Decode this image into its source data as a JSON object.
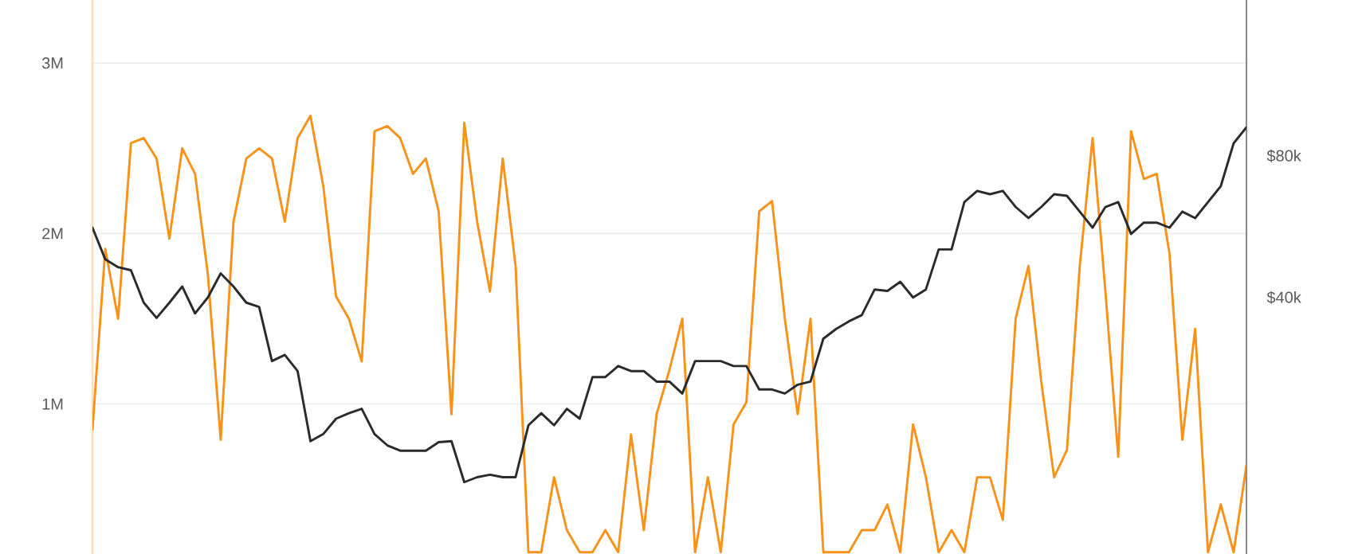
{
  "chart_data": {
    "type": "line",
    "categories": [
      null,
      null,
      null,
      null,
      null,
      null,
      null,
      null,
      null,
      null,
      null,
      null,
      null,
      null,
      null,
      null,
      null,
      null,
      null,
      null,
      null,
      null,
      null,
      null,
      null,
      null,
      null,
      null,
      null,
      null,
      null,
      null,
      null,
      null,
      null,
      null,
      null,
      null,
      null,
      null,
      null,
      null,
      null,
      null,
      null,
      null,
      null,
      null,
      null,
      null,
      null,
      null,
      null,
      null,
      null,
      null,
      null,
      null,
      null,
      null,
      null,
      null,
      null,
      null,
      null,
      null,
      null,
      null,
      null,
      null,
      null,
      null,
      null,
      null,
      null,
      null,
      null,
      null,
      null,
      null,
      null,
      null,
      null,
      null,
      null,
      null,
      null,
      null,
      null,
      null,
      null
    ],
    "series": [
      {
        "color": "#f7931a",
        "values": [
          850000,
          1910000,
          1500000,
          2530000,
          2560000,
          2440000,
          1970000,
          2500000,
          2350000,
          1760000,
          790000,
          2070000,
          2440000,
          2500000,
          2440000,
          2070000,
          2560000,
          2690000,
          2280000,
          1630000,
          1500000,
          1250000,
          2600000,
          2630000,
          2560000,
          2350000,
          2440000,
          2130000,
          940000,
          2650000,
          2070000,
          1660000,
          2440000,
          1810000,
          130000,
          130000,
          570000,
          260000,
          130000,
          130000,
          260000,
          130000,
          820000,
          260000,
          940000,
          1200000,
          1500000,
          130000,
          570000,
          130000,
          880000,
          1010000,
          2130000,
          2190000,
          1500000,
          940000,
          1500000,
          130000,
          130000,
          130000,
          260000,
          260000,
          410000,
          130000,
          880000,
          570000,
          130000,
          260000,
          130000,
          570000,
          570000,
          320000,
          1500000,
          1810000,
          1130000,
          570000,
          730000,
          1810000,
          2560000,
          1660000,
          690000,
          2600000,
          2320000,
          2350000,
          1880000,
          790000,
          1440000,
          130000,
          410000,
          130000,
          640000
        ]
      },
      {
        "color": "#2b2b2b",
        "axis": "y2",
        "values": [
          56300,
          48200,
          46400,
          45700,
          39000,
          36200,
          39000,
          42200,
          37000,
          40000,
          45000,
          42200,
          39000,
          38200,
          29300,
          30200,
          27900,
          19800,
          20500,
          22100,
          22700,
          23200,
          20500,
          19400,
          18900,
          18900,
          18900,
          19700,
          19800,
          16200,
          16600,
          16800,
          16600,
          16600,
          21400,
          22700,
          21400,
          23200,
          22100,
          27100,
          27100,
          28600,
          27900,
          27900,
          26500,
          26500,
          25000,
          29300,
          29300,
          29300,
          28600,
          28600,
          25500,
          25500,
          25000,
          26100,
          26500,
          32700,
          34300,
          35600,
          36700,
          41600,
          41300,
          43200,
          40000,
          41600,
          50600,
          50600,
          63800,
          67400,
          66300,
          67400,
          62300,
          59000,
          62300,
          66300,
          65800,
          60900,
          56300,
          62300,
          63800,
          54600,
          57700,
          57700,
          56300,
          60900,
          59000,
          63800,
          69000,
          85100,
          92000
        ]
      }
    ],
    "ylim": [
      120000,
      3370000
    ],
    "yticks": [
      {
        "value": 1000000,
        "label": "1M"
      },
      {
        "value": 2000000,
        "label": "2M"
      },
      {
        "value": 3000000,
        "label": "3M"
      }
    ],
    "y2lim": [
      11400,
      171600
    ],
    "y2ticks": [
      {
        "value": 40000,
        "label": "$40k"
      },
      {
        "value": 80000,
        "label": "$80k"
      }
    ],
    "log": "y2",
    "grid": "y",
    "marker": "none"
  }
}
